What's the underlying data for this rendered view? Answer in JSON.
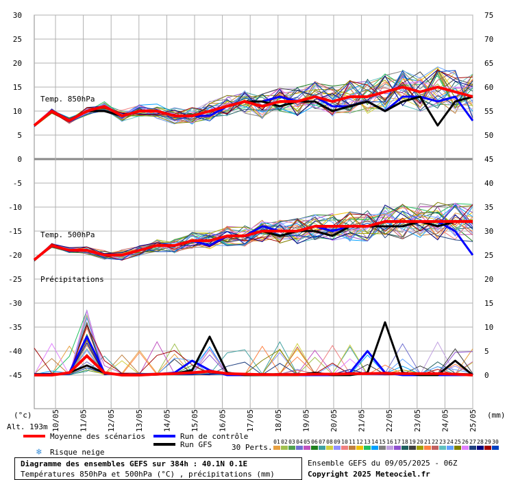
{
  "chart_data": {
    "type": "line",
    "title": "Diagramme des ensembles GEFS sur 384h : 40.1N 0.1E",
    "subtitle": "Températures 850hPa et 500hPa (°C) , précipitations (mm)",
    "x_dates": [
      "10/05",
      "11/05",
      "12/05",
      "13/05",
      "14/05",
      "15/05",
      "16/05",
      "17/05",
      "18/05",
      "19/05",
      "20/05",
      "21/05",
      "22/05",
      "23/05",
      "24/05",
      "25/05"
    ],
    "left_ticks": [
      "30",
      "25",
      "20",
      "15",
      "10",
      "5",
      "0",
      "-5",
      "-10",
      "-15",
      "-20",
      "-25",
      "-30",
      "-35",
      "-40",
      "-45"
    ],
    "right_ticks_top": [
      "75",
      "70",
      "65",
      "60",
      "55",
      "50"
    ],
    "right_ticks_bottom": [
      "45",
      "40",
      "35",
      "30",
      "25",
      "20",
      "15",
      "10",
      "5",
      "0"
    ],
    "left_unit": "(°c)",
    "right_unit": "(mm)",
    "altitude": "Alt. 193m",
    "panels": {
      "t850_label": "Temp. 850hPa",
      "t500_label": "Temp. 500hPa",
      "precip_label": "Précipitations"
    },
    "series": [
      {
        "name": "Moyenne des scénarios",
        "color": "#ff0000",
        "t850": [
          7,
          10,
          8,
          10,
          11,
          9,
          10,
          10,
          9,
          9,
          10,
          11,
          12,
          11,
          12,
          12,
          13,
          12,
          13,
          13,
          14,
          15,
          14,
          15,
          14,
          13
        ],
        "t500": [
          -21,
          -18,
          -19,
          -19,
          -20,
          -20,
          -19,
          -18,
          -18,
          -17,
          -17,
          -16,
          -16,
          -15,
          -15,
          -15,
          -14,
          -14,
          -14,
          -14,
          -13,
          -13,
          -13,
          -13,
          -13,
          -13
        ],
        "precip": [
          0,
          0,
          0.5,
          4,
          0.5,
          0,
          0,
          0.2,
          0.3,
          0.5,
          0.8,
          0.3,
          0.2,
          0.1,
          0.1,
          0.1,
          0.2,
          0.2,
          0.3,
          0.3,
          0.4,
          0.3,
          0.3,
          0.3,
          0.2,
          0
        ]
      },
      {
        "name": "Run de contrôle",
        "color": "#0000ff",
        "t850": [
          7,
          10,
          8,
          10,
          11,
          9,
          10,
          10,
          9,
          9,
          9,
          11,
          12,
          12,
          13,
          12,
          13,
          11,
          11,
          12,
          10,
          13,
          13,
          12,
          13,
          8
        ],
        "t500": [
          -21,
          -18,
          -19,
          -19,
          -20,
          -20,
          -19,
          -18,
          -18,
          -17,
          -18,
          -16,
          -16,
          -14,
          -15,
          -15,
          -14,
          -15,
          -14,
          -14,
          -14,
          -14,
          -13,
          -13,
          -15,
          -20
        ],
        "precip": [
          0,
          0,
          0.5,
          8,
          0.5,
          0,
          0,
          0.2,
          0.5,
          3,
          1,
          0,
          0,
          0,
          0,
          0,
          0,
          0,
          0.5,
          5,
          0.5,
          0,
          0,
          0,
          0,
          0
        ]
      },
      {
        "name": "Run GFS",
        "color": "#000000",
        "t850": [
          7,
          10,
          8,
          10,
          10,
          9,
          10,
          10,
          9,
          9,
          10,
          11,
          12,
          12,
          11,
          12,
          12,
          10,
          11,
          12,
          10,
          12,
          13,
          7,
          12,
          13
        ],
        "t500": [
          -21,
          -18,
          -19,
          -19,
          -20,
          -20,
          -19,
          -18,
          -18,
          -17,
          -17,
          -16,
          -16,
          -15,
          -16,
          -15,
          -15,
          -16,
          -14,
          -14,
          -14,
          -14,
          -13,
          -14,
          -13,
          -13
        ],
        "precip": [
          0,
          0,
          0.5,
          2,
          0.5,
          0,
          0,
          0.1,
          0.3,
          1,
          8,
          0.5,
          0,
          0,
          0,
          0,
          0.5,
          0,
          0,
          0.5,
          11,
          0.5,
          0,
          0,
          3,
          0
        ]
      }
    ],
    "perturbations": {
      "label": "30 Perts.",
      "codes": [
        "01",
        "02",
        "03",
        "04",
        "05",
        "06",
        "07",
        "08",
        "09",
        "10",
        "11",
        "12",
        "13",
        "14",
        "15",
        "16",
        "17",
        "18",
        "19",
        "20",
        "21",
        "22",
        "23",
        "24",
        "25",
        "26",
        "27",
        "28",
        "29",
        "30"
      ],
      "colors": [
        "#e8a040",
        "#a0c050",
        "#50a050",
        "#7070d0",
        "#c050c0",
        "#208020",
        "#40a0a0",
        "#d0d040",
        "#9090ff",
        "#f08080",
        "#c08040",
        "#f0c000",
        "#20c060",
        "#00a0ff",
        "#808080",
        "#c0a0e0",
        "#9050d0",
        "#206060",
        "#404040",
        "#a0a000",
        "#ff8040",
        "#c06060",
        "#60c0c0",
        "#60a0ff",
        "#808000",
        "#e080ff",
        "#204080",
        "#000080",
        "#a00000",
        "#0040c0"
      ]
    },
    "legend": {
      "mean": "Moyenne des scénarios",
      "control": "Run de contrôle",
      "gfs": "Run GFS",
      "snow": "Risque neige"
    },
    "footer": {
      "line1": "Diagramme des ensembles GEFS sur 384h : 40.1N 0.1E",
      "line2": "Températures 850hPa et 500hPa (°C) , précipitations (mm)",
      "run": "Ensemble GEFS du 09/05/2025 - 06Z",
      "copyright": "Copyright 2025 Meteociel.fr"
    }
  }
}
